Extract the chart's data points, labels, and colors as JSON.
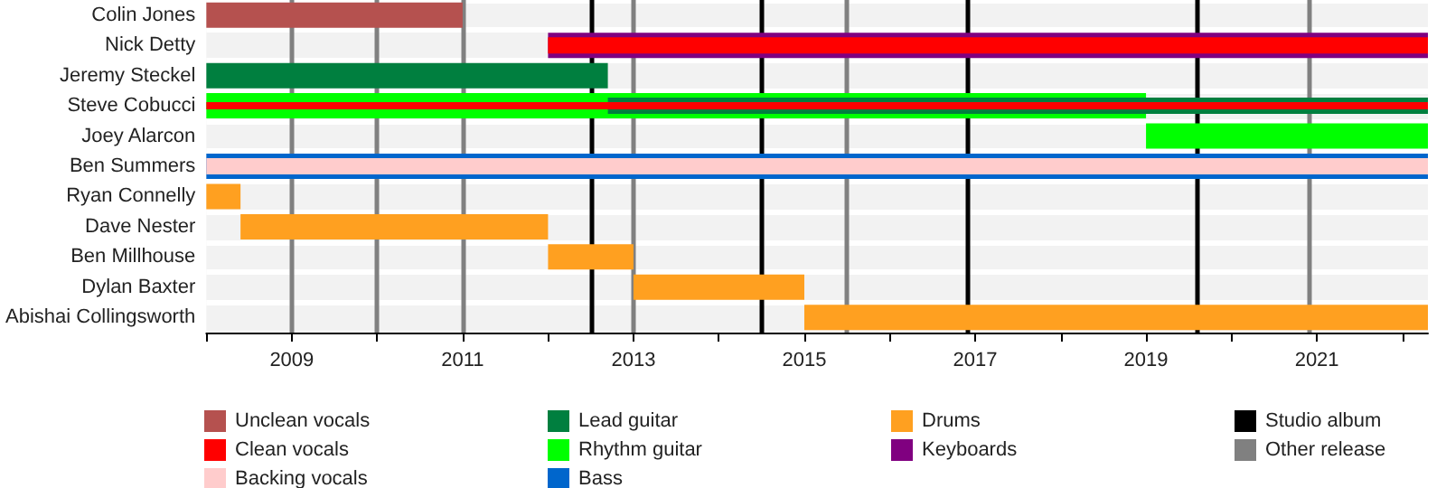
{
  "chart_data": {
    "type": "bar",
    "orientation": "horizontal",
    "categories": [
      "Colin Jones",
      "Nick Detty",
      "Jeremy Steckel",
      "Steve Cobucci",
      "Joey Alarcon",
      "Ben Summers",
      "Ryan Connelly",
      "Dave Nester",
      "Ben Millhouse",
      "Dylan Baxter",
      "Abishai Collingsworth"
    ],
    "series": [
      {
        "name": "Unclean vocals",
        "color": "#b5514f",
        "base": [
          2008,
          null,
          null,
          null,
          null,
          null,
          null,
          null,
          null,
          null,
          null
        ],
        "values": [
          3,
          null,
          null,
          null,
          null,
          null,
          null,
          null,
          null,
          null,
          null
        ]
      },
      {
        "name": "Clean vocals",
        "color": "#ff0000",
        "base": [
          null,
          2012,
          null,
          2008,
          null,
          null,
          null,
          null,
          null,
          null,
          null
        ],
        "values": [
          null,
          10.3,
          null,
          14.3,
          null,
          null,
          null,
          null,
          null,
          null,
          null
        ]
      },
      {
        "name": "Backing vocals",
        "color": "#ffcccc",
        "base": [
          null,
          null,
          null,
          null,
          null,
          2008,
          null,
          null,
          null,
          null,
          null
        ],
        "values": [
          null,
          null,
          null,
          null,
          null,
          14.3,
          null,
          null,
          null,
          null,
          null
        ]
      },
      {
        "name": "Lead guitar",
        "color": "#007f3f",
        "base": [
          null,
          null,
          2008,
          2012.7,
          null,
          null,
          null,
          null,
          null,
          null,
          null
        ],
        "values": [
          null,
          null,
          4.7,
          9.6,
          null,
          null,
          null,
          null,
          null,
          null,
          null
        ]
      },
      {
        "name": "Rhythm guitar",
        "color": "#00ff00",
        "base": [
          null,
          null,
          null,
          2008,
          2019,
          null,
          null,
          null,
          null,
          null,
          null
        ],
        "values": [
          null,
          null,
          null,
          11,
          3.3,
          null,
          null,
          null,
          null,
          null,
          null
        ]
      },
      {
        "name": "Bass",
        "color": "#0066cc",
        "base": [
          null,
          null,
          null,
          null,
          null,
          2008,
          null,
          null,
          null,
          null,
          null
        ],
        "values": [
          null,
          null,
          null,
          null,
          null,
          14.3,
          null,
          null,
          null,
          null,
          null
        ]
      },
      {
        "name": "Drums",
        "color": "#ffa020",
        "base": [
          null,
          null,
          null,
          null,
          null,
          null,
          2008,
          2008.4,
          2012,
          2013,
          2015
        ],
        "values": [
          null,
          null,
          null,
          null,
          null,
          null,
          0.4,
          3.6,
          1,
          2,
          7.3
        ]
      },
      {
        "name": "Keyboards",
        "color": "#800080",
        "base": [
          null,
          2012,
          null,
          null,
          null,
          null,
          null,
          null,
          null,
          null,
          null
        ],
        "values": [
          null,
          10.3,
          null,
          null,
          null,
          null,
          null,
          null,
          null,
          null,
          null
        ]
      }
    ],
    "xlim": [
      2008,
      2022.3
    ],
    "xticks": [
      {
        "value": 2008,
        "label": null
      },
      2009,
      {
        "value": 2010,
        "label": null
      },
      2011,
      {
        "value": 2012,
        "label": null
      },
      2013,
      {
        "value": 2014,
        "label": null
      },
      2015,
      {
        "value": 2016,
        "label": null
      },
      2017,
      {
        "value": 2018,
        "label": null
      },
      2019,
      {
        "value": 2020,
        "label": null
      },
      2021,
      {
        "value": 2022,
        "label": null
      }
    ],
    "ref_lines": [
      {
        "axis": "x",
        "value": 2012.5,
        "label": "Studio album",
        "color": "#000000"
      },
      {
        "axis": "x",
        "value": 2014.5,
        "color": "#000000"
      },
      {
        "axis": "x",
        "value": 2016.9,
        "color": "#000000"
      },
      {
        "axis": "x",
        "value": 2019.6,
        "color": "#000000"
      },
      {
        "axis": "x",
        "value": 2009,
        "label": "Other release",
        "color": "#808080"
      },
      {
        "axis": "x",
        "value": 2010,
        "color": "#808080"
      },
      {
        "axis": "x",
        "value": 2011,
        "color": "#808080"
      },
      {
        "axis": "x",
        "value": 2013,
        "color": "#808080"
      },
      {
        "axis": "x",
        "value": 2015.5,
        "color": "#808080"
      },
      {
        "axis": "x",
        "value": 2020.9,
        "color": "#808080"
      }
    ],
    "grid": false,
    "legend": "bottom"
  }
}
